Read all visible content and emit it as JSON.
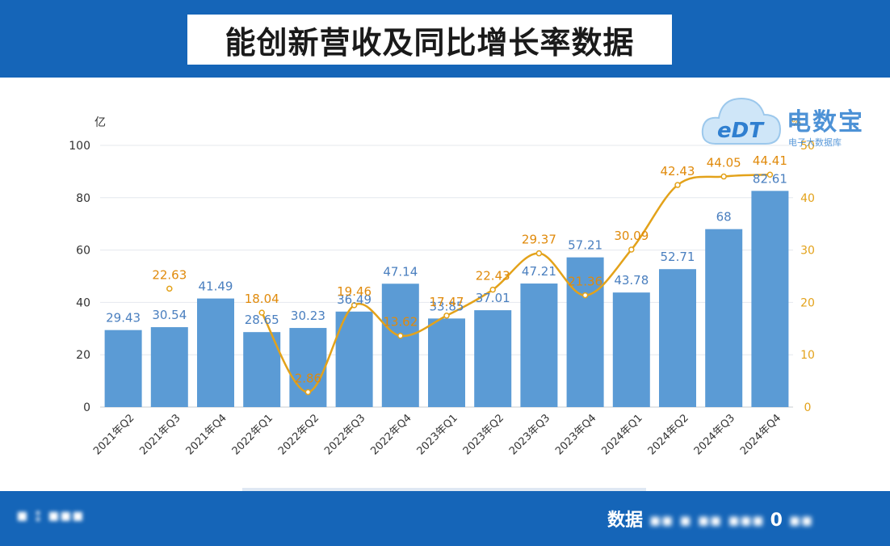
{
  "header": {
    "title": "能创新营收及同比增长率数据"
  },
  "footer": {
    "right_label": "数据",
    "right_tail": "0"
  },
  "watermark": {
    "brand": "电数宝",
    "logo": "eDT",
    "sub": "电子大数据库"
  },
  "colors": {
    "bar": "#5b9bd5",
    "line": "#e3a21a",
    "header": "#1565b8",
    "bar_label": "#4a7fbf",
    "line_label": "#e08a0b"
  },
  "chart_data": {
    "type": "bar",
    "categories": [
      "2021年Q2",
      "2021年Q3",
      "2021年Q4",
      "2022年Q1",
      "2022年Q2",
      "2022年Q3",
      "2022年Q4",
      "2023年Q1",
      "2023年Q2",
      "2023年Q3",
      "2023年Q4",
      "2024年Q1",
      "2024年Q2",
      "2024年Q3",
      "2024年Q4"
    ],
    "bar_labels": [
      "29.43",
      "30.54",
      "41.49",
      "28.65",
      "30.23",
      "36.49",
      "47.14",
      "33.85",
      "37.01",
      "47.21",
      "57.21",
      "43.78",
      "52.71",
      "68",
      "82.61"
    ],
    "line_labels": [
      "",
      "22.63",
      "",
      "18.04",
      "2.86",
      "19.46",
      "13.62",
      "17.47",
      "22.43",
      "29.37",
      "21.36",
      "30.09",
      "42.43",
      "44.05",
      "44.41"
    ],
    "series": [
      {
        "type": "bar",
        "axis": "left",
        "values": [
          29.43,
          30.54,
          41.49,
          28.65,
          30.23,
          36.49,
          47.14,
          33.85,
          37.01,
          47.21,
          57.21,
          43.78,
          52.71,
          68,
          82.61
        ]
      },
      {
        "type": "line",
        "axis": "right",
        "values": [
          null,
          22.63,
          null,
          18.04,
          2.86,
          19.46,
          13.62,
          17.47,
          22.43,
          29.37,
          21.36,
          30.09,
          42.43,
          44.05,
          44.41
        ]
      }
    ],
    "yleft": {
      "unit": "亿",
      "ticks": [
        "0",
        "20",
        "40",
        "60",
        "80",
        "100"
      ],
      "range": [
        0,
        100
      ]
    },
    "yright": {
      "unit": "%",
      "ticks": [
        "0",
        "10",
        "20",
        "30",
        "40",
        "50"
      ],
      "range": [
        0,
        50
      ]
    },
    "grid": true
  }
}
